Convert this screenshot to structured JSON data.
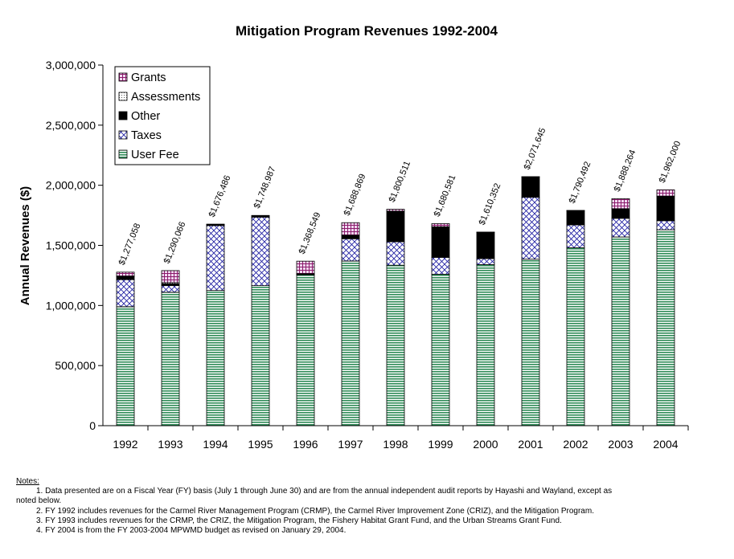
{
  "chart_data": {
    "type": "bar",
    "stacked": true,
    "title": "Mitigation Program Revenues 1992-2004",
    "xlabel": "",
    "ylabel": "Annual Revenues ($)",
    "ylim": [
      0,
      3000000
    ],
    "yticks": [
      "0",
      "500,000",
      "1,000,000",
      "1,500,000",
      "2,000,000",
      "2,500,000",
      "3,000,000"
    ],
    "categories": [
      "1992",
      "1993",
      "1994",
      "1995",
      "1996",
      "1997",
      "1998",
      "1999",
      "2000",
      "2001",
      "2002",
      "2003",
      "2004"
    ],
    "series": [
      {
        "name": "User Fee",
        "pattern": "hstripe",
        "values": [
          990000,
          1110000,
          1125000,
          1165000,
          1255000,
          1370000,
          1335000,
          1260000,
          1340000,
          1385000,
          1480000,
          1570000,
          1630000
        ]
      },
      {
        "name": "Taxes",
        "pattern": "crosshatch",
        "values": [
          225000,
          55000,
          540000,
          570000,
          5000,
          185000,
          195000,
          140000,
          50000,
          515000,
          190000,
          155000,
          75000
        ]
      },
      {
        "name": "Other",
        "pattern": "solid",
        "values": [
          25000,
          15000,
          10000,
          10000,
          5000,
          30000,
          255000,
          255000,
          220000,
          170000,
          120000,
          80000,
          205000
        ]
      },
      {
        "name": "Assessments",
        "pattern": "dots",
        "values": [
          5000,
          10000,
          0,
          0,
          0,
          0,
          0,
          0,
          0,
          0,
          0,
          0,
          0
        ]
      },
      {
        "name": "Grants",
        "pattern": "grid",
        "values": [
          32058,
          100066,
          1486,
          3987,
          103549,
          103869,
          15511,
          25581,
          352,
          1645,
          492,
          83264,
          52000
        ]
      }
    ],
    "totals": [
      "$1,277,058",
      "$1,290,066",
      "$1,676,486",
      "$1,748,987",
      "$1,368,549",
      "$1,688,869",
      "$1,800,511",
      "$1,680,581",
      "$1,610,352",
      "$2,071,645",
      "$1,790,492",
      "$1,888,264",
      "$1,962,000"
    ],
    "legend_order": [
      "Grants",
      "Assessments",
      "Other",
      "Taxes",
      "User Fee"
    ],
    "legend_position": "top-left",
    "grid": false
  },
  "notes": {
    "heading": "Notes:",
    "items": [
      "1. Data presented are on a Fiscal Year (FY) basis (July 1 through June 30) and are from the annual independent audit reports by Hayashi and Wayland, except as",
      "noted below.",
      "2. FY 1992 includes revenues for  the Carmel River Management Program (CRMP), the Carmel River Improvement Zone (CRIZ), and the Mitigation Program.",
      "3. FY 1993 includes revenues for  the CRMP, the CRIZ, the Mitigation Program, the Fishery Habitat Grant Fund, and the Urban Streams Grant Fund.",
      "4. FY 2004 is from the FY 2003-2004 MPWMD budget as revised on January 29, 2004."
    ]
  }
}
